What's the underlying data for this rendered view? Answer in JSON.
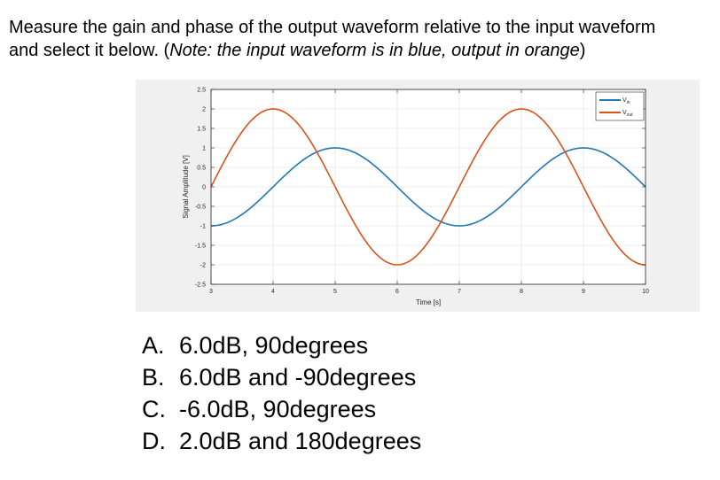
{
  "question": {
    "line1": "Measure the gain and phase of the output waveform relative to the input waveform",
    "line2_start": "and select it below. (",
    "line2_note": "Note: the input waveform is in blue, output in orange",
    "line2_end": ")"
  },
  "chart_data": {
    "type": "line",
    "title": "",
    "xlabel": "Time [s]",
    "ylabel": "Signal Amplitude [V]",
    "xlim": [
      3,
      10
    ],
    "ylim": [
      -2.5,
      2.5
    ],
    "xticks": [
      "3",
      "4",
      "5",
      "6",
      "7",
      "8",
      "9",
      "10"
    ],
    "yticks": [
      "2.5",
      "2",
      "1.5",
      "1",
      "0.5",
      "0",
      "-0.5",
      "-1",
      "-1.5",
      "-2",
      "-2.5"
    ],
    "grid": true,
    "legend_position": "top-right",
    "series": [
      {
        "name": "Vin",
        "label_main": "V",
        "label_sub": "in",
        "color": "#1f77b4",
        "amplitude": 1,
        "peak_x": 5,
        "period": 4
      },
      {
        "name": "Vout",
        "label_main": "V",
        "label_sub": "out",
        "color": "#d95319",
        "amplitude": 2,
        "peak_x": 4,
        "period": 4
      }
    ]
  },
  "answers": [
    {
      "letter": "A.",
      "text": "6.0dB, 90degrees"
    },
    {
      "letter": "B.",
      "text": "6.0dB and -90degrees"
    },
    {
      "letter": "C.",
      "text": "-6.0dB, 90degrees"
    },
    {
      "letter": "D.",
      "text": "2.0dB and 180degrees"
    }
  ]
}
